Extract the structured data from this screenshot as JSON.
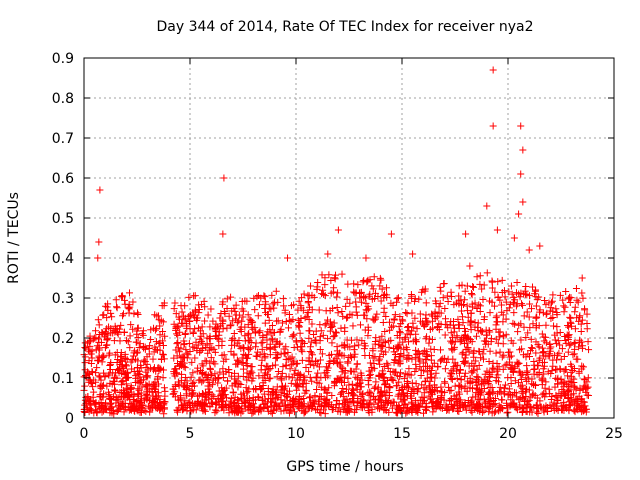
{
  "chart_data": {
    "type": "scatter",
    "title": "Day 344 of 2014, Rate Of TEC Index for receiver nya2",
    "xlabel": "GPS time / hours",
    "ylabel": "ROTI / TECUs",
    "xlim": [
      0,
      25
    ],
    "ylim": [
      0,
      0.9
    ],
    "xticks": [
      0,
      5,
      10,
      15,
      20,
      25
    ],
    "yticks": [
      0,
      0.1,
      0.2,
      0.3,
      0.4,
      0.5,
      0.6,
      0.7,
      0.8,
      0.9
    ],
    "xtick_labels": [
      "0",
      "5",
      "10",
      "15",
      "20",
      "25"
    ],
    "ytick_labels": [
      "0",
      "0.1",
      "0.2",
      "0.3",
      "0.4",
      "0.5",
      "0.6",
      "0.7",
      "0.8",
      "0.9"
    ],
    "grid": true,
    "marker": "+",
    "color": "#ff0000",
    "data_gaps_hours": [
      [
        3.85,
        4.2
      ]
    ],
    "series": [
      {
        "name": "ROTI",
        "outliers": [
          {
            "x": 0.75,
            "y": 0.57
          },
          {
            "x": 0.7,
            "y": 0.44
          },
          {
            "x": 0.65,
            "y": 0.4
          },
          {
            "x": 6.6,
            "y": 0.6
          },
          {
            "x": 6.55,
            "y": 0.46
          },
          {
            "x": 19.3,
            "y": 0.87
          },
          {
            "x": 19.3,
            "y": 0.73
          },
          {
            "x": 20.6,
            "y": 0.73
          },
          {
            "x": 20.7,
            "y": 0.67
          },
          {
            "x": 20.6,
            "y": 0.61
          },
          {
            "x": 20.7,
            "y": 0.54
          },
          {
            "x": 19.0,
            "y": 0.53
          },
          {
            "x": 20.5,
            "y": 0.51
          },
          {
            "x": 19.5,
            "y": 0.47
          },
          {
            "x": 12.0,
            "y": 0.47
          },
          {
            "x": 14.5,
            "y": 0.46
          },
          {
            "x": 18.0,
            "y": 0.46
          },
          {
            "x": 20.3,
            "y": 0.45
          },
          {
            "x": 21.5,
            "y": 0.43
          },
          {
            "x": 9.6,
            "y": 0.4
          },
          {
            "x": 11.5,
            "y": 0.41
          },
          {
            "x": 13.3,
            "y": 0.4
          },
          {
            "x": 15.5,
            "y": 0.41
          },
          {
            "x": 18.2,
            "y": 0.38
          },
          {
            "x": 21.0,
            "y": 0.42
          },
          {
            "x": 23.5,
            "y": 0.35
          }
        ],
        "envelope": [
          {
            "x": 0.0,
            "y": 0.18
          },
          {
            "x": 1.0,
            "y": 0.28
          },
          {
            "x": 2.0,
            "y": 0.33
          },
          {
            "x": 3.0,
            "y": 0.22
          },
          {
            "x": 3.8,
            "y": 0.3
          },
          {
            "x": 4.5,
            "y": 0.28
          },
          {
            "x": 5.0,
            "y": 0.32
          },
          {
            "x": 6.0,
            "y": 0.28
          },
          {
            "x": 7.0,
            "y": 0.3
          },
          {
            "x": 8.0,
            "y": 0.3
          },
          {
            "x": 9.0,
            "y": 0.33
          },
          {
            "x": 10.0,
            "y": 0.3
          },
          {
            "x": 11.0,
            "y": 0.35
          },
          {
            "x": 12.0,
            "y": 0.36
          },
          {
            "x": 13.0,
            "y": 0.35
          },
          {
            "x": 14.0,
            "y": 0.36
          },
          {
            "x": 15.0,
            "y": 0.3
          },
          {
            "x": 16.0,
            "y": 0.32
          },
          {
            "x": 17.0,
            "y": 0.34
          },
          {
            "x": 18.0,
            "y": 0.33
          },
          {
            "x": 19.0,
            "y": 0.38
          },
          {
            "x": 20.0,
            "y": 0.35
          },
          {
            "x": 21.0,
            "y": 0.33
          },
          {
            "x": 22.0,
            "y": 0.3
          },
          {
            "x": 23.0,
            "y": 0.32
          },
          {
            "x": 23.8,
            "y": 0.32
          }
        ],
        "x_range": [
          0,
          23.8
        ],
        "baseline_min": 0.02
      }
    ]
  }
}
